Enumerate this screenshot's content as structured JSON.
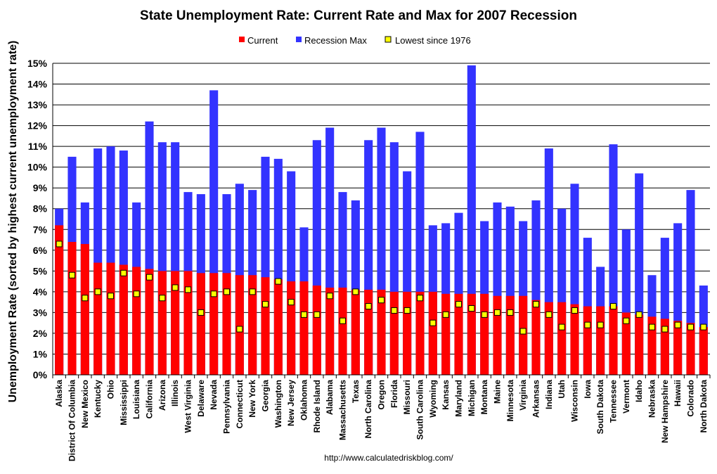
{
  "chart_data": {
    "type": "bar",
    "title": "State Unemployment Rate: Current Rate and Max for 2007 Recession",
    "ylabel": "Unemployment Rate (sorted by highest current unemployment rate)",
    "xlabel": "",
    "source": "http://www.calculatedriskblog.com/",
    "ylim": [
      0,
      15
    ],
    "yticks": [
      0,
      1,
      2,
      3,
      4,
      5,
      6,
      7,
      8,
      9,
      10,
      11,
      12,
      13,
      14,
      15
    ],
    "ytick_labels": [
      "0%",
      "1%",
      "2%",
      "3%",
      "4%",
      "5%",
      "6%",
      "7%",
      "8%",
      "9%",
      "10%",
      "11%",
      "12%",
      "13%",
      "14%",
      "15%"
    ],
    "grid": true,
    "legend": {
      "position": "top-center",
      "items": [
        {
          "label": "Current",
          "color": "#ff0000",
          "marker": "square"
        },
        {
          "label": "Recession Max",
          "color": "#3333ff",
          "marker": "square"
        },
        {
          "label": "Lowest since 1976",
          "color": "#ffff00",
          "marker": "square-outlined"
        }
      ]
    },
    "categories": [
      "Alaska",
      "District Of Columbia",
      "New Mexico",
      "Kentucky",
      "Ohio",
      "Mississippi",
      "Louisiana",
      "California",
      "Arizona",
      "Illinois",
      "West Virginia",
      "Delaware",
      "Nevada",
      "Pennsylvania",
      "Connecticut",
      "New York",
      "Georgia",
      "Washington",
      "New Jersey",
      "Oklahoma",
      "Rhode Island",
      "Alabama",
      "Massachusetts",
      "Texas",
      "North Carolina",
      "Oregon",
      "Florida",
      "Missouri",
      "South Carolina",
      "Wyoming",
      "Kansas",
      "Maryland",
      "Michigan",
      "Montana",
      "Maine",
      "Minnesota",
      "Virginia",
      "Arkansas",
      "Indiana",
      "Utah",
      "Wisconsin",
      "Iowa",
      "South Dakota",
      "Tennessee",
      "Vermont",
      "Idaho",
      "Nebraska",
      "New Hampshire",
      "Hawaii",
      "Colorado",
      "North Dakota"
    ],
    "series": [
      {
        "name": "Current",
        "color": "#ff0000",
        "values": [
          7.2,
          6.4,
          6.3,
          5.4,
          5.4,
          5.3,
          5.2,
          5.1,
          5.0,
          5.0,
          5.0,
          4.9,
          4.9,
          4.9,
          4.8,
          4.8,
          4.7,
          4.6,
          4.5,
          4.5,
          4.3,
          4.2,
          4.2,
          4.1,
          4.1,
          4.1,
          4.0,
          4.0,
          4.0,
          4.0,
          3.9,
          3.9,
          3.9,
          3.9,
          3.8,
          3.8,
          3.8,
          3.6,
          3.5,
          3.5,
          3.4,
          3.3,
          3.3,
          3.3,
          3.0,
          2.9,
          2.8,
          2.7,
          2.6,
          2.5,
          2.3
        ]
      },
      {
        "name": "Recession Max",
        "color": "#3333ff",
        "values": [
          8.0,
          10.5,
          8.3,
          10.9,
          11.0,
          10.8,
          8.3,
          12.2,
          11.2,
          11.2,
          8.8,
          8.7,
          13.7,
          8.7,
          9.2,
          8.9,
          10.5,
          10.4,
          9.8,
          7.1,
          11.3,
          11.9,
          8.8,
          8.4,
          11.3,
          11.9,
          11.2,
          9.8,
          11.7,
          7.2,
          7.3,
          7.8,
          14.9,
          7.4,
          8.3,
          8.1,
          7.4,
          8.4,
          10.9,
          8.0,
          9.2,
          6.6,
          5.2,
          11.1,
          7.0,
          9.7,
          4.8,
          6.6,
          7.3,
          8.9,
          4.3
        ]
      },
      {
        "name": "Lowest since 1976",
        "color": "#ffff00",
        "values": [
          6.3,
          4.8,
          3.7,
          4.0,
          3.8,
          4.9,
          3.9,
          4.7,
          3.7,
          4.2,
          4.1,
          3.0,
          3.9,
          4.0,
          2.2,
          4.0,
          3.4,
          4.5,
          3.5,
          2.9,
          2.9,
          3.8,
          2.6,
          4.0,
          3.3,
          3.6,
          3.1,
          3.1,
          3.7,
          2.5,
          2.9,
          3.4,
          3.2,
          2.9,
          3.0,
          3.0,
          2.1,
          3.4,
          2.9,
          2.3,
          3.1,
          2.4,
          2.4,
          3.3,
          2.6,
          2.9,
          2.3,
          2.2,
          2.4,
          2.3,
          2.3
        ]
      }
    ]
  }
}
